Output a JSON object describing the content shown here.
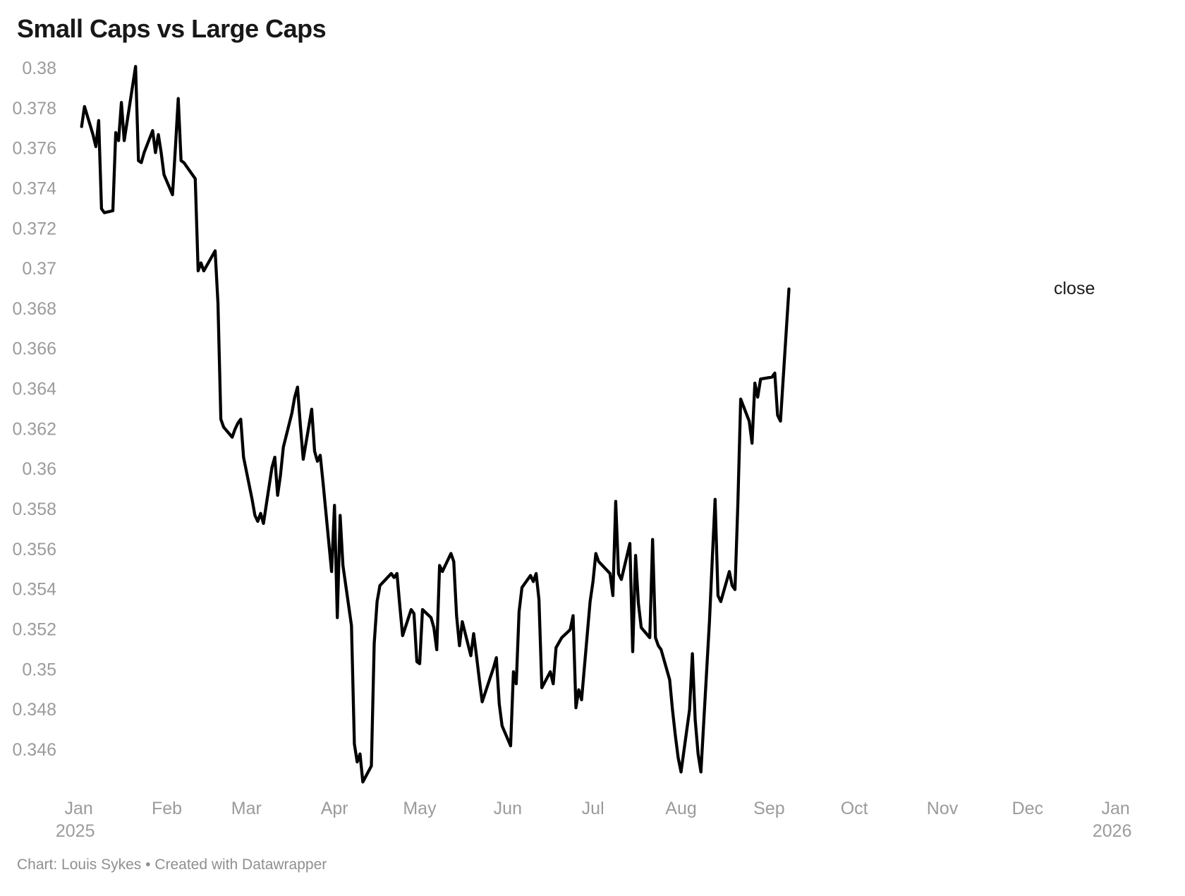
{
  "chart_data": {
    "type": "line",
    "title": "Small Caps vs Large Caps",
    "series_label": "close",
    "grid": "off",
    "legend_position": "right-of-line-end",
    "x_range": [
      "2025-01-01",
      "2026-01-01"
    ],
    "y_tick_range": [
      0.346,
      0.38
    ],
    "y_ticks": [
      {
        "label": "0.38",
        "value": 0.38
      },
      {
        "label": "0.378",
        "value": 0.378
      },
      {
        "label": "0.376",
        "value": 0.376
      },
      {
        "label": "0.374",
        "value": 0.374
      },
      {
        "label": "0.372",
        "value": 0.372
      },
      {
        "label": "0.37",
        "value": 0.37
      },
      {
        "label": "0.368",
        "value": 0.368
      },
      {
        "label": "0.366",
        "value": 0.366
      },
      {
        "label": "0.364",
        "value": 0.364
      },
      {
        "label": "0.362",
        "value": 0.362
      },
      {
        "label": "0.36",
        "value": 0.36
      },
      {
        "label": "0.358",
        "value": 0.358
      },
      {
        "label": "0.356",
        "value": 0.356
      },
      {
        "label": "0.354",
        "value": 0.354
      },
      {
        "label": "0.352",
        "value": 0.352
      },
      {
        "label": "0.35",
        "value": 0.35
      },
      {
        "label": "0.348",
        "value": 0.348
      },
      {
        "label": "0.346",
        "value": 0.346
      }
    ],
    "x_ticks": [
      {
        "label": "Jan",
        "sub": "2025",
        "day": 0
      },
      {
        "label": "Feb",
        "day": 31
      },
      {
        "label": "Mar",
        "day": 59
      },
      {
        "label": "Apr",
        "day": 90
      },
      {
        "label": "May",
        "day": 120
      },
      {
        "label": "Jun",
        "day": 151
      },
      {
        "label": "Jul",
        "day": 181
      },
      {
        "label": "Aug",
        "day": 212
      },
      {
        "label": "Sep",
        "day": 243
      },
      {
        "label": "Oct",
        "day": 273
      },
      {
        "label": "Nov",
        "day": 304
      },
      {
        "label": "Dec",
        "day": 334
      },
      {
        "label": "Jan",
        "sub": "2026",
        "day": 365
      }
    ],
    "series": [
      {
        "name": "close",
        "color": "#000000",
        "data": [
          [
            "2025-01-02",
            0.3771
          ],
          [
            "2025-01-03",
            0.3781
          ],
          [
            "2025-01-06",
            0.3767
          ],
          [
            "2025-01-07",
            0.3761
          ],
          [
            "2025-01-08",
            0.3774
          ],
          [
            "2025-01-09",
            0.373
          ],
          [
            "2025-01-10",
            0.3728
          ],
          [
            "2025-01-13",
            0.3729
          ],
          [
            "2025-01-14",
            0.3768
          ],
          [
            "2025-01-15",
            0.3764
          ],
          [
            "2025-01-16",
            0.3783
          ],
          [
            "2025-01-17",
            0.3764
          ],
          [
            "2025-01-21",
            0.3801
          ],
          [
            "2025-01-22",
            0.3754
          ],
          [
            "2025-01-23",
            0.3753
          ],
          [
            "2025-01-24",
            0.3758
          ],
          [
            "2025-01-27",
            0.3769
          ],
          [
            "2025-01-28",
            0.3758
          ],
          [
            "2025-01-29",
            0.3767
          ],
          [
            "2025-01-30",
            0.3758
          ],
          [
            "2025-01-31",
            0.3747
          ],
          [
            "2025-02-03",
            0.3737
          ],
          [
            "2025-02-04",
            0.376
          ],
          [
            "2025-02-05",
            0.3785
          ],
          [
            "2025-02-06",
            0.3754
          ],
          [
            "2025-02-07",
            0.3753
          ],
          [
            "2025-02-10",
            0.3747
          ],
          [
            "2025-02-11",
            0.3745
          ],
          [
            "2025-02-12",
            0.3699
          ],
          [
            "2025-02-13",
            0.3703
          ],
          [
            "2025-02-14",
            0.3699
          ],
          [
            "2025-02-18",
            0.3709
          ],
          [
            "2025-02-19",
            0.3683
          ],
          [
            "2025-02-20",
            0.3625
          ],
          [
            "2025-02-21",
            0.3621
          ],
          [
            "2025-02-24",
            0.3616
          ],
          [
            "2025-02-25",
            0.362
          ],
          [
            "2025-02-26",
            0.3623
          ],
          [
            "2025-02-27",
            0.3625
          ],
          [
            "2025-02-28",
            0.3606
          ],
          [
            "2025-03-03",
            0.3585
          ],
          [
            "2025-03-04",
            0.3577
          ],
          [
            "2025-03-05",
            0.3574
          ],
          [
            "2025-03-06",
            0.3578
          ],
          [
            "2025-03-07",
            0.3573
          ],
          [
            "2025-03-10",
            0.3601
          ],
          [
            "2025-03-11",
            0.3606
          ],
          [
            "2025-03-12",
            0.3587
          ],
          [
            "2025-03-13",
            0.3597
          ],
          [
            "2025-03-14",
            0.3611
          ],
          [
            "2025-03-17",
            0.3628
          ],
          [
            "2025-03-18",
            0.3636
          ],
          [
            "2025-03-19",
            0.3641
          ],
          [
            "2025-03-20",
            0.3622
          ],
          [
            "2025-03-21",
            0.3605
          ],
          [
            "2025-03-24",
            0.363
          ],
          [
            "2025-03-25",
            0.3609
          ],
          [
            "2025-03-26",
            0.3604
          ],
          [
            "2025-03-27",
            0.3607
          ],
          [
            "2025-03-28",
            0.3593
          ],
          [
            "2025-03-31",
            0.3549
          ],
          [
            "2025-04-01",
            0.3582
          ],
          [
            "2025-04-02",
            0.3526
          ],
          [
            "2025-04-03",
            0.3577
          ],
          [
            "2025-04-04",
            0.3552
          ],
          [
            "2025-04-07",
            0.3522
          ],
          [
            "2025-04-08",
            0.3463
          ],
          [
            "2025-04-09",
            0.3454
          ],
          [
            "2025-04-10",
            0.3458
          ],
          [
            "2025-04-11",
            0.3444
          ],
          [
            "2025-04-14",
            0.3452
          ],
          [
            "2025-04-15",
            0.3513
          ],
          [
            "2025-04-16",
            0.3534
          ],
          [
            "2025-04-17",
            0.3542
          ],
          [
            "2025-04-21",
            0.3548
          ],
          [
            "2025-04-22",
            0.3546
          ],
          [
            "2025-04-23",
            0.3548
          ],
          [
            "2025-04-24",
            0.3532
          ],
          [
            "2025-04-25",
            0.3517
          ],
          [
            "2025-04-28",
            0.353
          ],
          [
            "2025-04-29",
            0.3528
          ],
          [
            "2025-04-30",
            0.3504
          ],
          [
            "2025-05-01",
            0.3503
          ],
          [
            "2025-05-02",
            0.353
          ],
          [
            "2025-05-05",
            0.3526
          ],
          [
            "2025-05-06",
            0.3521
          ],
          [
            "2025-05-07",
            0.351
          ],
          [
            "2025-05-08",
            0.3552
          ],
          [
            "2025-05-09",
            0.3549
          ],
          [
            "2025-05-12",
            0.3558
          ],
          [
            "2025-05-13",
            0.3554
          ],
          [
            "2025-05-14",
            0.3527
          ],
          [
            "2025-05-15",
            0.3512
          ],
          [
            "2025-05-16",
            0.3524
          ],
          [
            "2025-05-19",
            0.3507
          ],
          [
            "2025-05-20",
            0.3518
          ],
          [
            "2025-05-21",
            0.3507
          ],
          [
            "2025-05-22",
            0.3495
          ],
          [
            "2025-05-23",
            0.3484
          ],
          [
            "2025-05-27",
            0.3501
          ],
          [
            "2025-05-28",
            0.3506
          ],
          [
            "2025-05-29",
            0.3483
          ],
          [
            "2025-05-30",
            0.3472
          ],
          [
            "2025-06-02",
            0.3462
          ],
          [
            "2025-06-03",
            0.3499
          ],
          [
            "2025-06-04",
            0.3493
          ],
          [
            "2025-06-05",
            0.3529
          ],
          [
            "2025-06-06",
            0.3541
          ],
          [
            "2025-06-09",
            0.3547
          ],
          [
            "2025-06-10",
            0.3544
          ],
          [
            "2025-06-11",
            0.3548
          ],
          [
            "2025-06-12",
            0.3535
          ],
          [
            "2025-06-13",
            0.3491
          ],
          [
            "2025-06-16",
            0.3499
          ],
          [
            "2025-06-17",
            0.3493
          ],
          [
            "2025-06-18",
            0.3511
          ],
          [
            "2025-06-20",
            0.3516
          ],
          [
            "2025-06-23",
            0.352
          ],
          [
            "2025-06-24",
            0.3527
          ],
          [
            "2025-06-25",
            0.3481
          ],
          [
            "2025-06-26",
            0.349
          ],
          [
            "2025-06-27",
            0.3485
          ],
          [
            "2025-06-30",
            0.3534
          ],
          [
            "2025-07-01",
            0.3544
          ],
          [
            "2025-07-02",
            0.3558
          ],
          [
            "2025-07-03",
            0.3554
          ],
          [
            "2025-07-07",
            0.3548
          ],
          [
            "2025-07-08",
            0.3537
          ],
          [
            "2025-07-09",
            0.3584
          ],
          [
            "2025-07-10",
            0.3548
          ],
          [
            "2025-07-11",
            0.3545
          ],
          [
            "2025-07-14",
            0.3563
          ],
          [
            "2025-07-15",
            0.3509
          ],
          [
            "2025-07-16",
            0.3557
          ],
          [
            "2025-07-17",
            0.3533
          ],
          [
            "2025-07-18",
            0.3521
          ],
          [
            "2025-07-21",
            0.3516
          ],
          [
            "2025-07-22",
            0.3565
          ],
          [
            "2025-07-23",
            0.3516
          ],
          [
            "2025-07-24",
            0.3512
          ],
          [
            "2025-07-25",
            0.351
          ],
          [
            "2025-07-28",
            0.3495
          ],
          [
            "2025-07-29",
            0.348
          ],
          [
            "2025-07-30",
            0.3467
          ],
          [
            "2025-07-31",
            0.3456
          ],
          [
            "2025-08-01",
            0.3449
          ],
          [
            "2025-08-04",
            0.348
          ],
          [
            "2025-08-05",
            0.3508
          ],
          [
            "2025-08-06",
            0.3475
          ],
          [
            "2025-08-07",
            0.3458
          ],
          [
            "2025-08-08",
            0.3449
          ],
          [
            "2025-08-11",
            0.3524
          ],
          [
            "2025-08-12",
            0.3555
          ],
          [
            "2025-08-13",
            0.3585
          ],
          [
            "2025-08-14",
            0.3537
          ],
          [
            "2025-08-15",
            0.3534
          ],
          [
            "2025-08-18",
            0.3549
          ],
          [
            "2025-08-19",
            0.3542
          ],
          [
            "2025-08-20",
            0.354
          ],
          [
            "2025-08-21",
            0.3583
          ],
          [
            "2025-08-22",
            0.3635
          ],
          [
            "2025-08-25",
            0.3624
          ],
          [
            "2025-08-26",
            0.3613
          ],
          [
            "2025-08-27",
            0.3643
          ],
          [
            "2025-08-28",
            0.3636
          ],
          [
            "2025-08-29",
            0.3645
          ],
          [
            "2025-09-02",
            0.3646
          ],
          [
            "2025-09-03",
            0.3648
          ],
          [
            "2025-09-04",
            0.3627
          ],
          [
            "2025-09-05",
            0.3624
          ],
          [
            "2025-09-08",
            0.369
          ]
        ]
      }
    ]
  },
  "footer": {
    "label": "Chart:",
    "author": "Louis Sykes",
    "separator": "•",
    "credit": "Created with Datawrapper"
  }
}
